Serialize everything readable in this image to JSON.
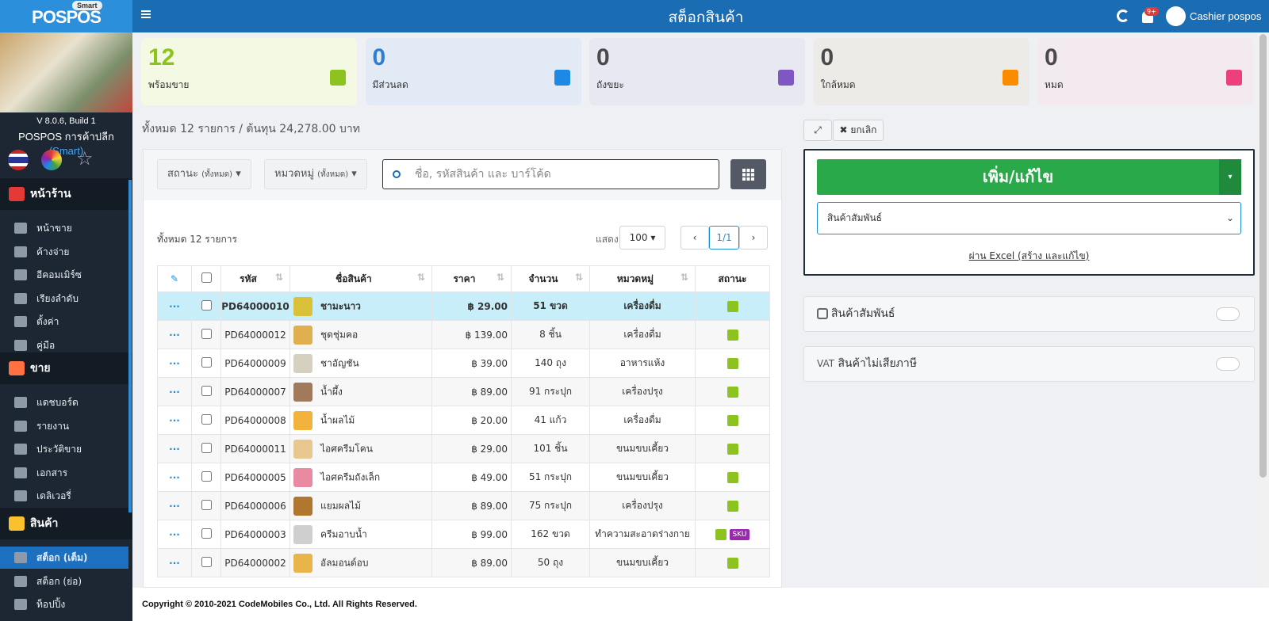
{
  "header": {
    "logo": "POSPOS",
    "badge": "Smart",
    "title": "สต็อกสินค้า",
    "notification_badge": "9+",
    "user": "Cashier pospos"
  },
  "sidebar": {
    "version": "V 8.0.6, Build 1",
    "store": "POSPOS การค้าปลีก",
    "store_tag": "(Smart)",
    "sections": [
      {
        "title": "หน้าร้าน",
        "items": [
          "หน้าขาย",
          "ค้างจ่าย",
          "อีคอมเมิร์ซ",
          "เรียงลำดับ",
          "ตั้งค่า",
          "คู่มือ"
        ]
      },
      {
        "title": "ขาย",
        "items": [
          "แดชบอร์ด",
          "รายงาน",
          "ประวัติขาย",
          "เอกสาร",
          "เดลิเวอรี่"
        ]
      },
      {
        "title": "สินค้า",
        "items": [
          "สต็อก (เต็ม)",
          "สต็อก (ย่อ)",
          "ท็อปปิ้ง"
        ]
      }
    ]
  },
  "stats": [
    {
      "value": 12,
      "label": "พร้อมขาย"
    },
    {
      "value": 0,
      "label": "มีส่วนลด"
    },
    {
      "value": 0,
      "label": "ถังขยะ"
    },
    {
      "value": 0,
      "label": "ใกล้หมด"
    },
    {
      "value": 0,
      "label": "หมด"
    }
  ],
  "summary": "ทั้งหมด 12 รายการ / ต้นทุน 24,278.00 บาท",
  "toolbar": {
    "status_filter": "สถานะ",
    "status_hint": "(ทั้งหมด)",
    "category_filter": "หมวดหมู่",
    "category_hint": "(ทั้งหมด)",
    "search_placeholder": "ชื่อ, รหัสสินค้า และ บาร์โค้ด"
  },
  "table": {
    "total": "ทั้งหมด 12 รายการ",
    "show_label": "แสดง",
    "page_size": "100",
    "page": "1/1",
    "columns": [
      "รหัส",
      "ชื่อสินค้า",
      "ราคา",
      "จำนวน",
      "หมวดหมู่",
      "สถานะ"
    ],
    "rows": [
      [
        "PD64000010",
        "ชามะนาว",
        "฿ 29.00",
        "51 ขวด",
        "เครื่องดื่ม"
      ],
      [
        "PD64000012",
        "ชุดชุ่มคอ",
        "฿ 139.00",
        "8 ชิ้น",
        "เครื่องดื่ม"
      ],
      [
        "PD64000009",
        "ชาอัญชัน",
        "฿ 39.00",
        "140 ถุง",
        "อาหารแห้ง"
      ],
      [
        "PD64000007",
        "น้ำผึ้ง",
        "฿ 89.00",
        "91 กระปุก",
        "เครื่องปรุง"
      ],
      [
        "PD64000008",
        "น้ำผลไม้",
        "฿ 20.00",
        "41 แก้ว",
        "เครื่องดื่ม"
      ],
      [
        "PD64000011",
        "ไอศครีมโคน",
        "฿ 29.00",
        "101 ชิ้น",
        "ขนมขบเคี้ยว"
      ],
      [
        "PD64000005",
        "ไอศครีมถังเล็ก",
        "฿ 49.00",
        "51 กระปุก",
        "ขนมขบเคี้ยว"
      ],
      [
        "PD64000006",
        "แยมผลไม้",
        "฿ 89.00",
        "75 กระปุก",
        "เครื่องปรุง"
      ],
      [
        "PD64000003",
        "ครีมอาบน้ำ",
        "฿ 99.00",
        "162 ขวด",
        "ทำความสะอาดร่างกาย"
      ],
      [
        "PD64000002",
        "อัลมอนด์อบ",
        "฿ 89.00",
        "50 ถุง",
        "ขนมขบเคี้ยว"
      ]
    ],
    "sku_tag": "SKU"
  },
  "editor": {
    "cancel": "ยกเลิก",
    "add_edit": "เพิ่ม/แก้ไข",
    "select": "สินค้าสัมพันธ์",
    "excel_link": "ผ่าน Excel (สร้าง และแก้ไข)"
  },
  "toggles": [
    {
      "label": "สินค้าสัมพันธ์"
    },
    {
      "prefix": "VAT",
      "label": "สินค้าไม่เสียภาษี"
    }
  ],
  "footer": "Copyright © 2010-2021 CodeMobiles Co., Ltd. All Rights Reserved."
}
